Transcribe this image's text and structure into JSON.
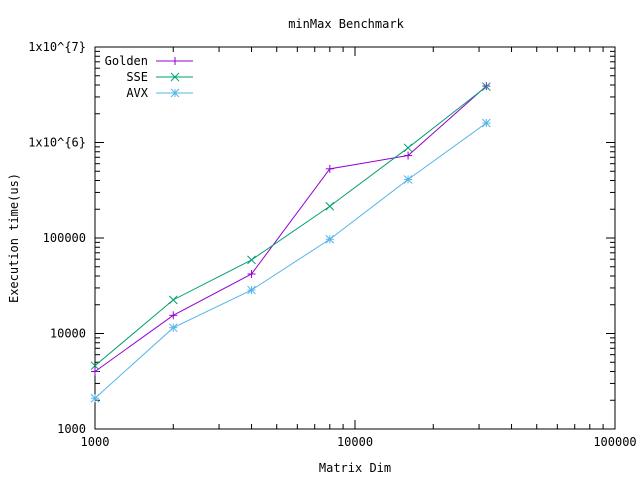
{
  "chart_data": {
    "type": "line",
    "title": "minMax Benchmark",
    "xlabel": "Matrix Dim",
    "ylabel": "Execution time(us)",
    "xscale": "log",
    "yscale": "log",
    "xlim": [
      1000,
      100000
    ],
    "ylim": [
      1000,
      10000000
    ],
    "x_ticks": [
      {
        "value": 1000,
        "label": "1000"
      },
      {
        "value": 10000,
        "label": "10000"
      },
      {
        "value": 100000,
        "label": "100000"
      }
    ],
    "y_ticks": [
      {
        "value": 1000,
        "label": "1000"
      },
      {
        "value": 10000,
        "label": "10000"
      },
      {
        "value": 100000,
        "label": "100000"
      },
      {
        "value": 1000000,
        "label": "1x10^{6}"
      },
      {
        "value": 10000000,
        "label": "1x10^{7}"
      }
    ],
    "grid": false,
    "legend_position": "top-left",
    "x": [
      1000,
      2000,
      4000,
      8000,
      16000,
      32000
    ],
    "series": [
      {
        "name": "Golden",
        "color": "#9400d3",
        "marker": "plus",
        "values": [
          4000,
          15500,
          42000,
          530000,
          730000,
          3900000
        ]
      },
      {
        "name": "SSE",
        "color": "#009e73",
        "marker": "cross",
        "values": [
          4600,
          22500,
          59000,
          215000,
          880000,
          3850000
        ]
      },
      {
        "name": "AVX",
        "color": "#56b4e9",
        "marker": "star",
        "values": [
          2100,
          11500,
          28500,
          97000,
          410000,
          1600000
        ]
      }
    ]
  }
}
